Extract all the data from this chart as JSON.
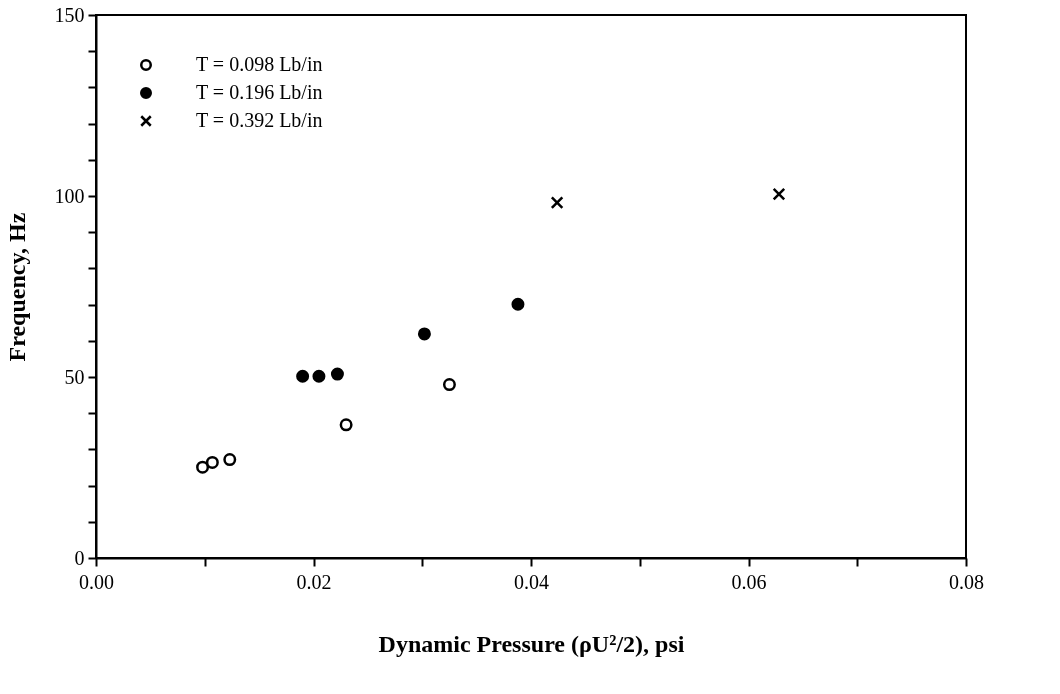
{
  "chart_data": {
    "type": "scatter",
    "xlabel": "Dynamic Pressure (ρU²/2),   psi",
    "ylabel": "Frequency,   Hz",
    "xlim": [
      0,
      0.08
    ],
    "ylim": [
      0,
      150
    ],
    "xticks": [
      {
        "value": 0,
        "label": "0.00"
      },
      {
        "value": 0.01,
        "label": null
      },
      {
        "value": 0.02,
        "label": "0.02"
      },
      {
        "value": 0.03,
        "label": null
      },
      {
        "value": 0.04,
        "label": "0.04"
      },
      {
        "value": 0.05,
        "label": null
      },
      {
        "value": 0.06,
        "label": "0.06"
      },
      {
        "value": 0.07,
        "label": null
      },
      {
        "value": 0.08,
        "label": "0.08"
      }
    ],
    "yticks": [
      0,
      {
        "value": 10,
        "label": null
      },
      {
        "value": 20,
        "label": null
      },
      {
        "value": 30,
        "label": null
      },
      {
        "value": 40,
        "label": null
      },
      50,
      {
        "value": 60,
        "label": null
      },
      {
        "value": 70,
        "label": null
      },
      {
        "value": 80,
        "label": null
      },
      {
        "value": 90,
        "label": null
      },
      100,
      {
        "value": 110,
        "label": null
      },
      {
        "value": 120,
        "label": null
      },
      {
        "value": 130,
        "label": null
      },
      {
        "value": 140,
        "label": null
      },
      150
    ],
    "grid": false,
    "legend": "top left",
    "series": [
      {
        "name": "T = 0.098 Lb/in",
        "color": "#ffffff",
        "marker": "circle",
        "x": [
          0.0098,
          0.0107,
          0.0123,
          0.023,
          0.0325
        ],
        "values": [
          25.1,
          26.4,
          27.2,
          36.8,
          47.9
        ]
      },
      {
        "name": "T = 0.196 Lb/in",
        "color": "#000000",
        "marker": "circle",
        "x": [
          0.019,
          0.0205,
          0.0222,
          0.0302,
          0.0388
        ],
        "values": [
          50.2,
          50.2,
          50.8,
          61.9,
          70.1
        ]
      },
      {
        "name": "T = 0.392 Lb/in",
        "color": "#000000",
        "marker": "cross",
        "x": [
          0.0424,
          0.0628
        ],
        "values": [
          98.2,
          100.5
        ]
      }
    ]
  }
}
